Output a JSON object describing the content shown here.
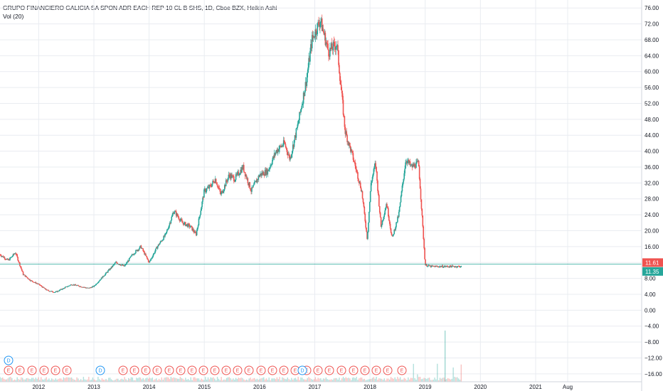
{
  "header": {
    "title": "GRUPO FINANCIERO GALICIA SA SPON ADR EACH REP 10 CL B SHS, 1D, Cboe BZX, Heikin Ashi",
    "volume_label": "Vol (20)"
  },
  "price_tags": {
    "upper": "11.61",
    "lower": "11.35",
    "upper_color": "#ef5350",
    "lower_color": "#26a69a"
  },
  "colors": {
    "up": "#26a69a",
    "down": "#ef5350",
    "grid": "#e9ecf1",
    "line": "#26a69a"
  },
  "markers": {
    "dividend_letter": "D",
    "earnings_letter": "E",
    "dividend_color": "#2196f3",
    "earnings_color": "#ef5350"
  },
  "chart_data": {
    "type": "candlestick",
    "style": "Heikin Ashi",
    "interval": "1D",
    "y_ticks": [
      76,
      72,
      68,
      64,
      60,
      56,
      52,
      48,
      44,
      40,
      36,
      32,
      28,
      24,
      20,
      16,
      12,
      8,
      4,
      0,
      -4,
      -8,
      -12,
      -16
    ],
    "y_tick_labels": [
      "76.00",
      "72.00",
      "68.00",
      "64.00",
      "60.00",
      "56.00",
      "52.00",
      "48.00",
      "44.00",
      "40.00",
      "36.00",
      "32.00",
      "28.00",
      "24.00",
      "20.00",
      "16.00",
      "12.00",
      "8.00",
      "4.00",
      "0.00",
      "−4.00",
      "−8.00",
      "−12.00",
      "−16.00"
    ],
    "ylim": [
      -18,
      78
    ],
    "x_tick_labels": [
      "2012",
      "2013",
      "2014",
      "2015",
      "2016",
      "2017",
      "2018",
      "2019",
      "2020",
      "2021",
      "Aug"
    ],
    "x_tick_values": [
      2012,
      2013,
      2014,
      2015,
      2016,
      2017,
      2018,
      2019,
      2020,
      2021,
      2021.58
    ],
    "xlim": [
      2011.3,
      2022.92
    ],
    "price_line": 11.61,
    "last_price": 11.35,
    "series": {
      "x": [
        2011.3,
        2011.45,
        2011.58,
        2011.72,
        2011.85,
        2012.0,
        2012.15,
        2012.3,
        2012.45,
        2012.6,
        2012.75,
        2012.9,
        2013.0,
        2013.2,
        2013.4,
        2013.55,
        2013.7,
        2013.85,
        2014.0,
        2014.15,
        2014.3,
        2014.45,
        2014.6,
        2014.75,
        2014.85,
        2015.0,
        2015.1,
        2015.2,
        2015.3,
        2015.45,
        2015.55,
        2015.7,
        2015.85,
        2016.0,
        2016.15,
        2016.3,
        2016.45,
        2016.55,
        2016.7,
        2016.85,
        2016.95,
        2017.1,
        2017.25,
        2017.4,
        2017.55,
        2017.7,
        2017.85,
        2017.95,
        2018.02,
        2018.1,
        2018.2,
        2018.3,
        2018.4,
        2018.52,
        2018.65,
        2018.75,
        2018.88,
        2019.0,
        2019.1,
        2019.2,
        2019.32,
        2019.4,
        2019.5,
        2019.6,
        2019.66
      ],
      "y": [
        14,
        12.5,
        14.5,
        9,
        7.5,
        6.5,
        5,
        4.5,
        5.5,
        6.5,
        6,
        5.5,
        6,
        9,
        12,
        11,
        14,
        16,
        12,
        16,
        19,
        25,
        22,
        21,
        19,
        30,
        31,
        33,
        29,
        34,
        33,
        36,
        30,
        34,
        35,
        40,
        42,
        38,
        47,
        58,
        68,
        73,
        65,
        67,
        45,
        38,
        30,
        18,
        32,
        37,
        21,
        27,
        18,
        24,
        38,
        36,
        37,
        11.35,
        11,
        11,
        11,
        11,
        11,
        11,
        11
      ]
    },
    "candles": {
      "x": [
        2011.3,
        2011.45,
        2011.58,
        2011.72,
        2011.85,
        2012.0,
        2012.15,
        2012.3,
        2012.45,
        2012.6,
        2012.75,
        2012.9,
        2013.0,
        2013.2,
        2013.4,
        2013.55,
        2013.7,
        2013.85,
        2014.0,
        2014.15,
        2014.3,
        2014.45,
        2014.6,
        2014.75,
        2014.85,
        2015.0,
        2015.1,
        2015.2,
        2015.3,
        2015.45,
        2015.55,
        2015.7,
        2015.85,
        2016.0,
        2016.15,
        2016.3,
        2016.45,
        2016.55,
        2016.7,
        2016.85,
        2016.95,
        2017.1,
        2017.25,
        2017.4,
        2017.55,
        2017.7,
        2017.85,
        2017.95,
        2018.02,
        2018.1,
        2018.2,
        2018.3,
        2018.4,
        2018.52,
        2018.65,
        2018.75,
        2018.88,
        2019.0,
        2019.1,
        2019.2,
        2019.32,
        2019.4,
        2019.5,
        2019.6,
        2019.66
      ],
      "close": [
        14,
        12.5,
        14.5,
        9,
        7.5,
        6.5,
        5,
        4.5,
        5.5,
        6.5,
        6,
        5.5,
        6,
        9,
        12,
        11,
        14,
        16,
        12,
        16,
        19,
        25,
        22,
        21,
        19,
        30,
        31,
        33,
        29,
        34,
        33,
        36,
        30,
        34,
        35,
        40,
        42,
        38,
        47,
        58,
        68,
        73,
        65,
        67,
        45,
        38,
        30,
        18,
        32,
        37,
        21,
        27,
        18,
        24,
        38,
        36,
        37,
        11.35,
        11,
        11,
        11,
        11,
        11,
        11,
        11
      ]
    }
  }
}
